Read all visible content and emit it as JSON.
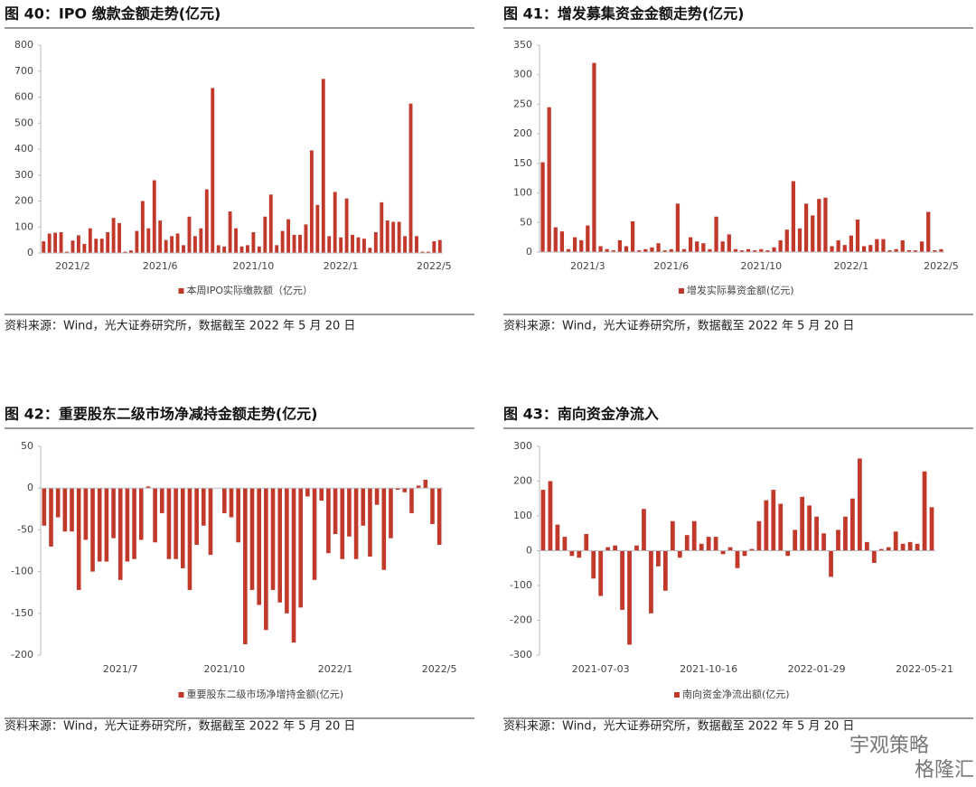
{
  "chart_data": [
    {
      "type": "bar",
      "title": "图 40：IPO 缴款金额走势(亿元)",
      "categories": [
        null,
        null,
        null,
        null,
        null,
        "2021/2",
        null,
        null,
        null,
        null,
        null,
        null,
        null,
        null,
        null,
        null,
        null,
        null,
        null,
        null,
        "2021/6",
        null,
        null,
        null,
        null,
        null,
        null,
        null,
        null,
        null,
        null,
        null,
        null,
        null,
        null,
        null,
        "2021/10",
        null,
        null,
        null,
        null,
        null,
        null,
        null,
        null,
        null,
        null,
        null,
        null,
        null,
        null,
        "2022/1",
        null,
        null,
        null,
        null,
        null,
        null,
        null,
        null,
        null,
        null,
        null,
        null,
        null,
        null,
        null,
        "2022/5",
        null
      ],
      "series": [
        {
          "name": "本周IPO实际缴款额（亿元）",
          "color": "#c0392b",
          "values": [
            45,
            75,
            78,
            80,
            5,
            48,
            68,
            35,
            95,
            55,
            55,
            80,
            135,
            115,
            5,
            10,
            85,
            200,
            95,
            280,
            125,
            50,
            65,
            75,
            30,
            140,
            65,
            95,
            245,
            635,
            30,
            25,
            160,
            95,
            25,
            30,
            80,
            25,
            140,
            225,
            30,
            85,
            130,
            70,
            70,
            110,
            395,
            185,
            670,
            65,
            235,
            60,
            210,
            70,
            60,
            55,
            20,
            80,
            195,
            125,
            120,
            120,
            65,
            575,
            65,
            5,
            5,
            45,
            50
          ]
        }
      ],
      "ylim": [
        0,
        800
      ],
      "yticks": [
        0,
        100,
        200,
        300,
        400,
        500,
        600,
        700,
        800
      ],
      "source": "资料来源：Wind，光大证券研究所，数据截至 2022 年 5 月 20 日"
    },
    {
      "type": "bar",
      "title": "图 41：增发募集资金金额走势(亿元)",
      "categories": [
        null,
        null,
        null,
        null,
        null,
        null,
        null,
        "2021/3",
        null,
        null,
        null,
        null,
        null,
        null,
        null,
        null,
        null,
        null,
        null,
        null,
        "2021/6",
        null,
        null,
        null,
        null,
        null,
        null,
        null,
        null,
        null,
        null,
        null,
        null,
        null,
        "2021/10",
        null,
        null,
        null,
        null,
        null,
        null,
        null,
        null,
        null,
        null,
        null,
        null,
        null,
        "2022/1",
        null,
        null,
        null,
        null,
        null,
        null,
        null,
        null,
        null,
        null,
        null,
        null,
        null,
        "2022/5"
      ],
      "series": [
        {
          "name": "增发实际募资金额(亿元)",
          "color": "#c0392b",
          "values": [
            152,
            245,
            42,
            35,
            5,
            25,
            20,
            45,
            320,
            10,
            5,
            3,
            20,
            10,
            52,
            3,
            5,
            8,
            15,
            3,
            5,
            82,
            5,
            25,
            18,
            15,
            5,
            60,
            18,
            30,
            5,
            3,
            5,
            3,
            5,
            3,
            8,
            20,
            38,
            120,
            40,
            82,
            62,
            90,
            92,
            10,
            20,
            12,
            28,
            55,
            10,
            12,
            22,
            22,
            3,
            5,
            20,
            3,
            3,
            18,
            68,
            3,
            5
          ]
        }
      ],
      "ylim": [
        0,
        350
      ],
      "yticks": [
        0,
        50,
        100,
        150,
        200,
        250,
        300,
        350
      ],
      "source": "资料来源：Wind，光大证券研究所，数据截至 2022 年 5 月 20 日"
    },
    {
      "type": "bar",
      "title": "图 42：重要股东二级市场净减持金额走势(亿元)",
      "categories": [
        null,
        null,
        null,
        null,
        null,
        null,
        null,
        null,
        null,
        null,
        null,
        "2021/7",
        null,
        null,
        null,
        null,
        null,
        null,
        null,
        null,
        null,
        null,
        null,
        null,
        null,
        null,
        "2021/10",
        null,
        null,
        null,
        null,
        null,
        null,
        null,
        null,
        null,
        null,
        null,
        null,
        null,
        null,
        null,
        "2022/1",
        null,
        null,
        null,
        null,
        null,
        null,
        null,
        null,
        null,
        null,
        null,
        null,
        null,
        null,
        "2022/5"
      ],
      "series": [
        {
          "name": "重要股东二级市场净增持金额(亿元)",
          "color": "#c0392b",
          "values": [
            -45,
            -70,
            -35,
            -52,
            -52,
            -122,
            -62,
            -100,
            -88,
            -88,
            -60,
            -110,
            -88,
            -85,
            -62,
            2,
            -65,
            -30,
            -85,
            -85,
            -96,
            -122,
            -68,
            -45,
            -80,
            0,
            -30,
            -35,
            -65,
            -187,
            -122,
            -140,
            -170,
            -122,
            -137,
            -150,
            -185,
            -143,
            -10,
            -110,
            -15,
            -78,
            -55,
            -85,
            -58,
            -85,
            -45,
            -82,
            -20,
            -98,
            -60,
            -2,
            -5,
            -30,
            3,
            10,
            -43,
            -68
          ]
        }
      ],
      "ylim": [
        -200,
        50
      ],
      "yticks": [
        -200,
        -150,
        -100,
        -50,
        0,
        50
      ],
      "source": "资料来源：Wind，光大证券研究所，数据截至 2022 年 5 月 20 日"
    },
    {
      "type": "bar",
      "title": "图 43：南向资金净流入",
      "categories": [
        null,
        null,
        null,
        null,
        null,
        null,
        null,
        null,
        "2021-07-03",
        null,
        null,
        null,
        null,
        null,
        null,
        null,
        null,
        null,
        null,
        null,
        null,
        null,
        null,
        "2021-10-16",
        null,
        null,
        null,
        null,
        null,
        null,
        null,
        null,
        null,
        null,
        null,
        null,
        null,
        null,
        "2022-01-29",
        null,
        null,
        null,
        null,
        null,
        null,
        null,
        null,
        null,
        null,
        null,
        null,
        null,
        null,
        "2022-05-21",
        null
      ],
      "series": [
        {
          "name": "南向资金净流出额(亿元)",
          "color": "#c0392b",
          "values": [
            175,
            200,
            75,
            40,
            -15,
            -20,
            48,
            -80,
            -130,
            10,
            15,
            -170,
            -270,
            15,
            120,
            -180,
            -45,
            -115,
            85,
            -20,
            45,
            85,
            20,
            40,
            40,
            -10,
            10,
            -50,
            -15,
            5,
            85,
            145,
            175,
            135,
            -15,
            60,
            155,
            130,
            98,
            50,
            -75,
            60,
            98,
            150,
            265,
            25,
            -35,
            5,
            10,
            55,
            20,
            25,
            20,
            228,
            125
          ]
        }
      ],
      "ylim": [
        -300,
        300
      ],
      "yticks": [
        -300,
        -200,
        -100,
        0,
        100,
        200,
        300
      ],
      "source": "资料来源：Wind，光大证券研究所，数据截至 2022 年 5 月 20 日"
    }
  ],
  "watermark": [
    "宇观策略",
    "格隆汇"
  ]
}
